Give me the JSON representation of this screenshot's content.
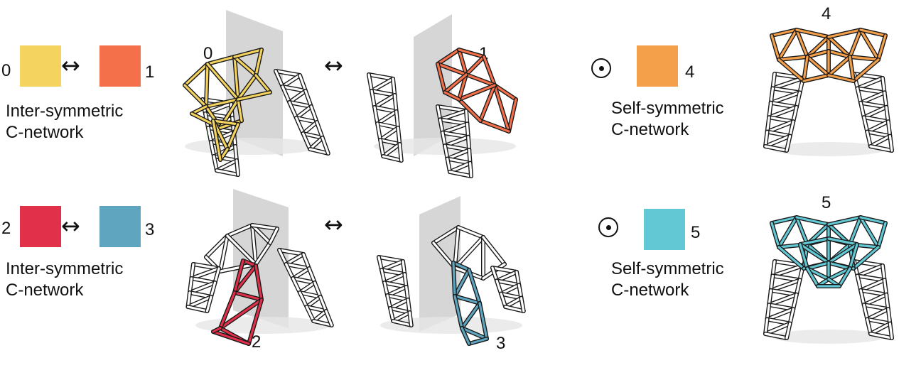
{
  "colors": {
    "c0": "#f4d35e",
    "c1": "#f4704a",
    "c2": "#e0304a",
    "c3": "#5fa5bf",
    "c4": "#f4a04a",
    "c5": "#62c8d4",
    "plane": "#c8c8c8",
    "frame": "#1a1a1a"
  },
  "row1": {
    "left_label": "0",
    "right_label": "1",
    "arrow": "↔",
    "caption_line1": "Inter-symmetric",
    "caption_line2": "C-network",
    "fig_label_a": "0",
    "fig_label_b": "1",
    "mid_arrow": "↔",
    "self_label": "4",
    "self_caption_line1": "Self-symmetric",
    "self_caption_line2": "C-network",
    "self_fig_label": "4"
  },
  "row2": {
    "left_label": "2",
    "right_label": "3",
    "arrow": "↔",
    "caption_line1": "Inter-symmetric",
    "caption_line2": "C-network",
    "fig_label_a": "2",
    "fig_label_b": "3",
    "mid_arrow": "↔",
    "self_label": "5",
    "self_caption_line1": "Self-symmetric",
    "self_caption_line2": "C-network",
    "self_fig_label": "5"
  },
  "icons": {
    "inter_symbol": "double-arrow-icon",
    "self_symbol": "circled-dot-icon"
  }
}
